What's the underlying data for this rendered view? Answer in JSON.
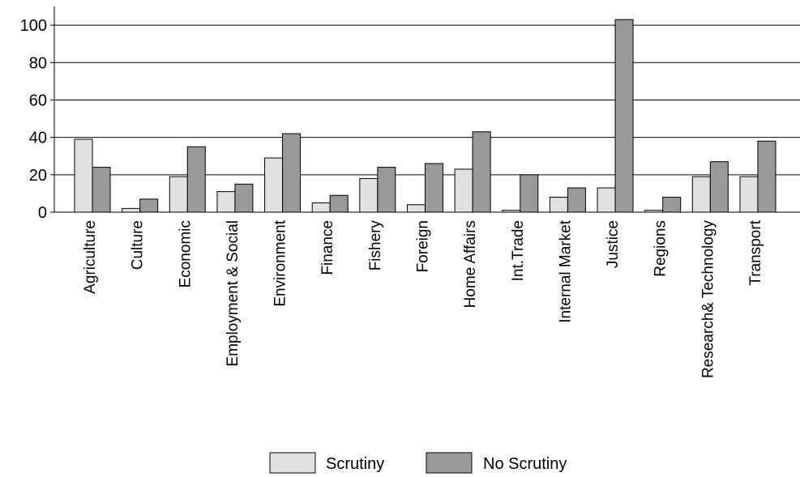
{
  "chart_data": {
    "type": "bar",
    "categories": [
      "Agriculture",
      "Culture",
      "Economic",
      "Employment & Social",
      "Environment",
      "Finance",
      "Fishery",
      "Foreign",
      "Home Affairs",
      "Int.Trade",
      "Internal Market",
      "Justice",
      "Regions",
      "Research& Technology",
      "Transport"
    ],
    "series": [
      {
        "name": "Scrutiny",
        "color": "#e0e0e0",
        "values": [
          39,
          2,
          19,
          11,
          29,
          5,
          18,
          4,
          23,
          1,
          8,
          13,
          1,
          19,
          19
        ]
      },
      {
        "name": "No Scrutiny",
        "color": "#999999",
        "values": [
          24,
          7,
          35,
          15,
          42,
          9,
          24,
          26,
          43,
          20,
          13,
          103,
          8,
          27,
          38
        ]
      }
    ],
    "yticks": [
      0,
      20,
      40,
      60,
      80,
      100
    ],
    "ylim": [
      0,
      110
    ],
    "grid": true,
    "legend_position": "bottom",
    "xlabel": "",
    "ylabel": "",
    "title": ""
  }
}
